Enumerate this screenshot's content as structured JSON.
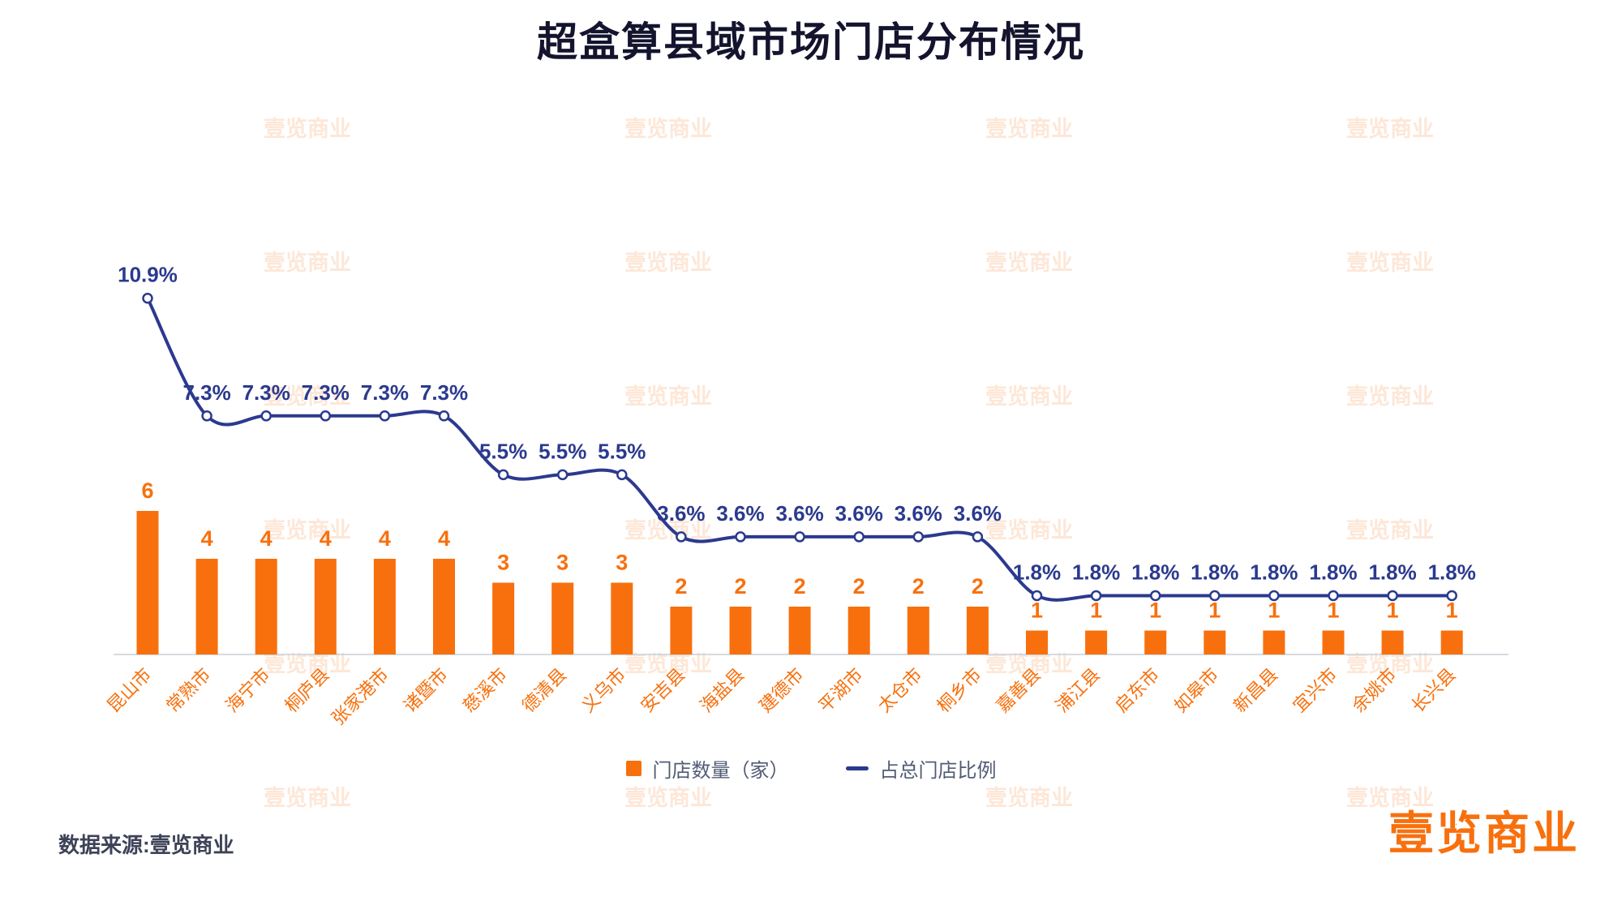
{
  "title": "超盒算县域市场门店分布情况",
  "source_note": "数据来源:壹览商业",
  "watermark_text": "壹览商业",
  "logo_text": "壹览商业",
  "legend": {
    "bars_label": "门店数量（家）",
    "line_label": "占总门店比例"
  },
  "colors": {
    "bar": "#F8700D",
    "bar_value_label": "#F8700D",
    "line": "#2B3A8E",
    "pct_label": "#2B3A8E",
    "axis_label": "#F8700D",
    "axis_line": "#C9CDD6",
    "title": "#14142E",
    "legend_text": "#525C75",
    "watermark": "#F8700D",
    "source_text": "#3D4257",
    "logo": "#F8700D"
  },
  "chart_data": {
    "type": "bar",
    "subtype": "bar+line combo",
    "title": "超盒算县域市场门店分布情况",
    "xlabel": "",
    "ylabel": "",
    "grid": false,
    "legend_position": "bottom-center",
    "categories": [
      "昆山市",
      "常熟市",
      "海宁市",
      "桐庐县",
      "张家港市",
      "诸暨市",
      "慈溪市",
      "德清县",
      "义乌市",
      "安吉县",
      "海盐县",
      "建德市",
      "平湖市",
      "太仓市",
      "桐乡市",
      "嘉善县",
      "浦江县",
      "启东市",
      "如皋市",
      "新昌县",
      "宜兴市",
      "余姚市",
      "长兴县"
    ],
    "series": [
      {
        "name": "门店数量（家）",
        "type": "bar",
        "unit": "家",
        "values": [
          6,
          4,
          4,
          4,
          4,
          4,
          3,
          3,
          3,
          2,
          2,
          2,
          2,
          2,
          2,
          1,
          1,
          1,
          1,
          1,
          1,
          1,
          1
        ]
      },
      {
        "name": "占总门店比例",
        "type": "line",
        "unit": "%",
        "values": [
          10.9,
          7.3,
          7.3,
          7.3,
          7.3,
          7.3,
          5.5,
          5.5,
          5.5,
          3.6,
          3.6,
          3.6,
          3.6,
          3.6,
          3.6,
          1.8,
          1.8,
          1.8,
          1.8,
          1.8,
          1.8,
          1.8,
          1.8
        ]
      }
    ]
  }
}
